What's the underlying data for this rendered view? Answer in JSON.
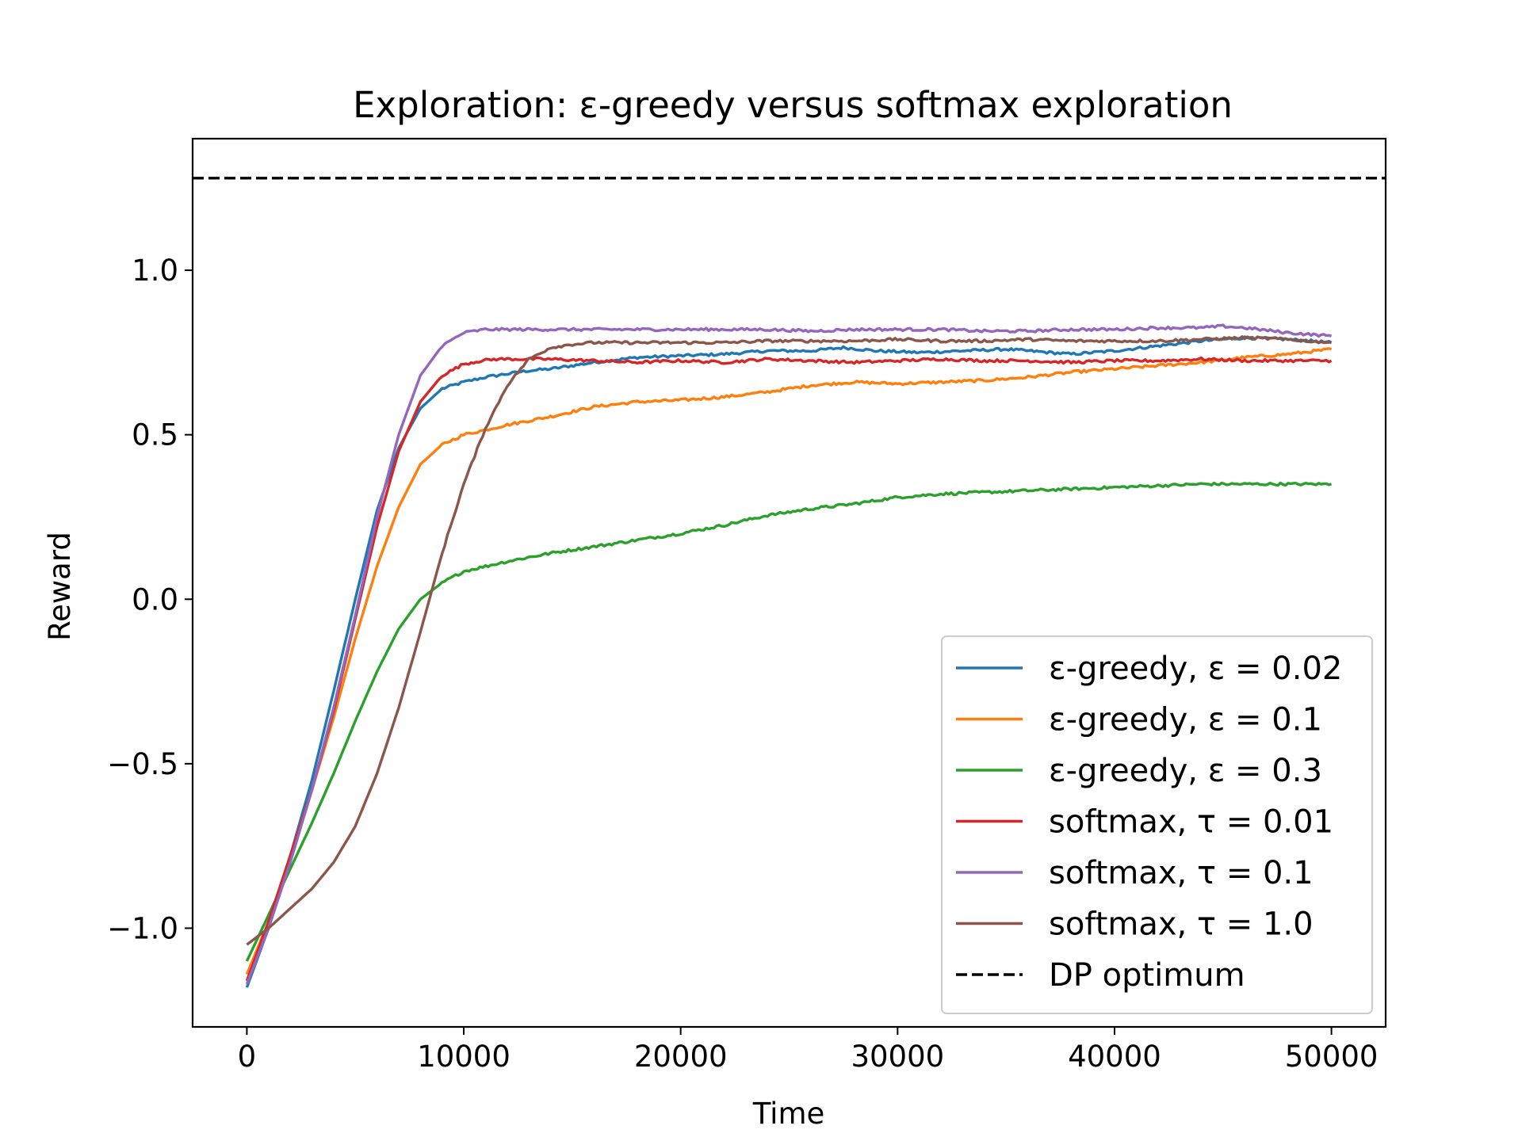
{
  "chart_data": {
    "type": "line",
    "title": "Exploration: ε-greedy versus softmax exploration",
    "xlabel": "Time",
    "ylabel": "Reward",
    "xlim": [
      -2500,
      52500
    ],
    "ylim": [
      -1.3,
      1.4
    ],
    "xticks": [
      0,
      10000,
      20000,
      30000,
      40000,
      50000
    ],
    "xtick_labels": [
      "0",
      "10000",
      "20000",
      "30000",
      "40000",
      "50000"
    ],
    "yticks": [
      -1.0,
      -0.5,
      0.0,
      0.5,
      1.0
    ],
    "ytick_labels": [
      "−1.0",
      "−0.5",
      "0.0",
      "0.5",
      "1.0"
    ],
    "grid": false,
    "legend_position": "lower-right",
    "series": [
      {
        "name": "ε-greedy, ε = 0.02",
        "color": "#1f77b4",
        "x": [
          0,
          1000,
          2000,
          3000,
          4000,
          5000,
          6000,
          7000,
          8000,
          9000,
          10000,
          11000,
          12000,
          13000,
          14000,
          16000,
          18000,
          20000,
          22000,
          24000,
          26000,
          27500,
          29000,
          31000,
          33000,
          35000,
          37000,
          38000,
          40000,
          42000,
          44000,
          46000,
          48000,
          50000
        ],
        "y": [
          -1.18,
          -1.0,
          -0.78,
          -0.55,
          -0.28,
          0.0,
          0.27,
          0.46,
          0.58,
          0.64,
          0.66,
          0.675,
          0.685,
          0.695,
          0.7,
          0.72,
          0.735,
          0.74,
          0.745,
          0.755,
          0.755,
          0.765,
          0.755,
          0.75,
          0.755,
          0.76,
          0.75,
          0.745,
          0.755,
          0.77,
          0.785,
          0.795,
          0.79,
          0.78
        ]
      },
      {
        "name": "ε-greedy, ε = 0.1",
        "color": "#ff7f0e",
        "x": [
          0,
          1000,
          2000,
          3000,
          4000,
          5000,
          6000,
          7000,
          8000,
          9000,
          10000,
          11000,
          12000,
          14000,
          16000,
          18000,
          20000,
          22000,
          24000,
          26000,
          28000,
          30000,
          32000,
          34000,
          36000,
          38000,
          40000,
          42000,
          44000,
          46000,
          48000,
          50000
        ],
        "y": [
          -1.14,
          -0.98,
          -0.78,
          -0.58,
          -0.36,
          -0.12,
          0.1,
          0.28,
          0.41,
          0.47,
          0.5,
          0.515,
          0.53,
          0.555,
          0.585,
          0.6,
          0.605,
          0.615,
          0.63,
          0.65,
          0.66,
          0.655,
          0.66,
          0.665,
          0.675,
          0.69,
          0.7,
          0.71,
          0.72,
          0.735,
          0.745,
          0.76
        ]
      },
      {
        "name": "ε-greedy, ε = 0.3",
        "color": "#2ca02c",
        "x": [
          0,
          1000,
          2000,
          3000,
          4000,
          5000,
          6000,
          7000,
          8000,
          9000,
          10000,
          11000,
          12000,
          14000,
          16000,
          18000,
          20000,
          22000,
          24000,
          26000,
          28000,
          30000,
          32000,
          34000,
          36000,
          38000,
          40000,
          42000,
          44000,
          46000,
          48000,
          50000
        ],
        "y": [
          -1.1,
          -0.96,
          -0.82,
          -0.68,
          -0.53,
          -0.37,
          -0.22,
          -0.09,
          0.0,
          0.05,
          0.085,
          0.1,
          0.115,
          0.14,
          0.16,
          0.18,
          0.2,
          0.225,
          0.255,
          0.275,
          0.29,
          0.31,
          0.32,
          0.325,
          0.33,
          0.335,
          0.34,
          0.345,
          0.35,
          0.35,
          0.35,
          0.35
        ]
      },
      {
        "name": "softmax, τ = 0.01",
        "color": "#d62728",
        "x": [
          0,
          1000,
          2000,
          3000,
          4000,
          5000,
          6000,
          7000,
          8000,
          9000,
          10000,
          10800,
          11500,
          12500,
          14000,
          16000,
          18000,
          20000,
          22000,
          24000,
          26000,
          28000,
          30000,
          32000,
          34000,
          36000,
          38000,
          40000,
          42000,
          44000,
          46000,
          48000,
          50000
        ],
        "y": [
          -1.16,
          -0.98,
          -0.78,
          -0.58,
          -0.34,
          -0.06,
          0.22,
          0.45,
          0.6,
          0.68,
          0.715,
          0.725,
          0.73,
          0.73,
          0.73,
          0.725,
          0.72,
          0.725,
          0.72,
          0.73,
          0.725,
          0.72,
          0.725,
          0.73,
          0.725,
          0.725,
          0.72,
          0.725,
          0.725,
          0.73,
          0.725,
          0.725,
          0.725
        ]
      },
      {
        "name": "softmax, τ = 0.1",
        "color": "#9467bd",
        "x": [
          0,
          1000,
          2000,
          3000,
          4000,
          5000,
          6000,
          7000,
          8000,
          9000,
          10000,
          11000,
          12000,
          14000,
          16000,
          18000,
          20000,
          22000,
          24000,
          26000,
          28000,
          30000,
          32000,
          34000,
          36000,
          38000,
          40000,
          42000,
          44000,
          45000,
          46000,
          48000,
          50000
        ],
        "y": [
          -1.17,
          -1.0,
          -0.8,
          -0.58,
          -0.33,
          -0.05,
          0.25,
          0.5,
          0.68,
          0.77,
          0.81,
          0.82,
          0.82,
          0.82,
          0.82,
          0.82,
          0.82,
          0.82,
          0.82,
          0.815,
          0.82,
          0.82,
          0.82,
          0.815,
          0.815,
          0.82,
          0.82,
          0.825,
          0.825,
          0.83,
          0.825,
          0.81,
          0.8
        ]
      },
      {
        "name": "softmax, τ = 1.0",
        "color": "#8c564b",
        "x": [
          0,
          1000,
          2000,
          3000,
          4000,
          5000,
          6000,
          7000,
          8000,
          9000,
          10000,
          11000,
          12000,
          13000,
          14000,
          15000,
          16000,
          18000,
          20000,
          22000,
          24000,
          26000,
          28000,
          30000,
          32000,
          34000,
          36000,
          38000,
          40000,
          42000,
          44000,
          46000,
          48000,
          50000
        ],
        "y": [
          -1.05,
          -1.0,
          -0.94,
          -0.88,
          -0.8,
          -0.69,
          -0.53,
          -0.33,
          -0.1,
          0.14,
          0.35,
          0.52,
          0.65,
          0.73,
          0.765,
          0.775,
          0.78,
          0.78,
          0.78,
          0.78,
          0.785,
          0.785,
          0.785,
          0.79,
          0.785,
          0.785,
          0.79,
          0.785,
          0.785,
          0.785,
          0.79,
          0.795,
          0.79,
          0.78
        ]
      },
      {
        "name": "DP optimum",
        "color": "#000000",
        "dashed": true,
        "x": [
          -2500,
          52500
        ],
        "y": [
          1.28,
          1.28
        ]
      }
    ]
  }
}
